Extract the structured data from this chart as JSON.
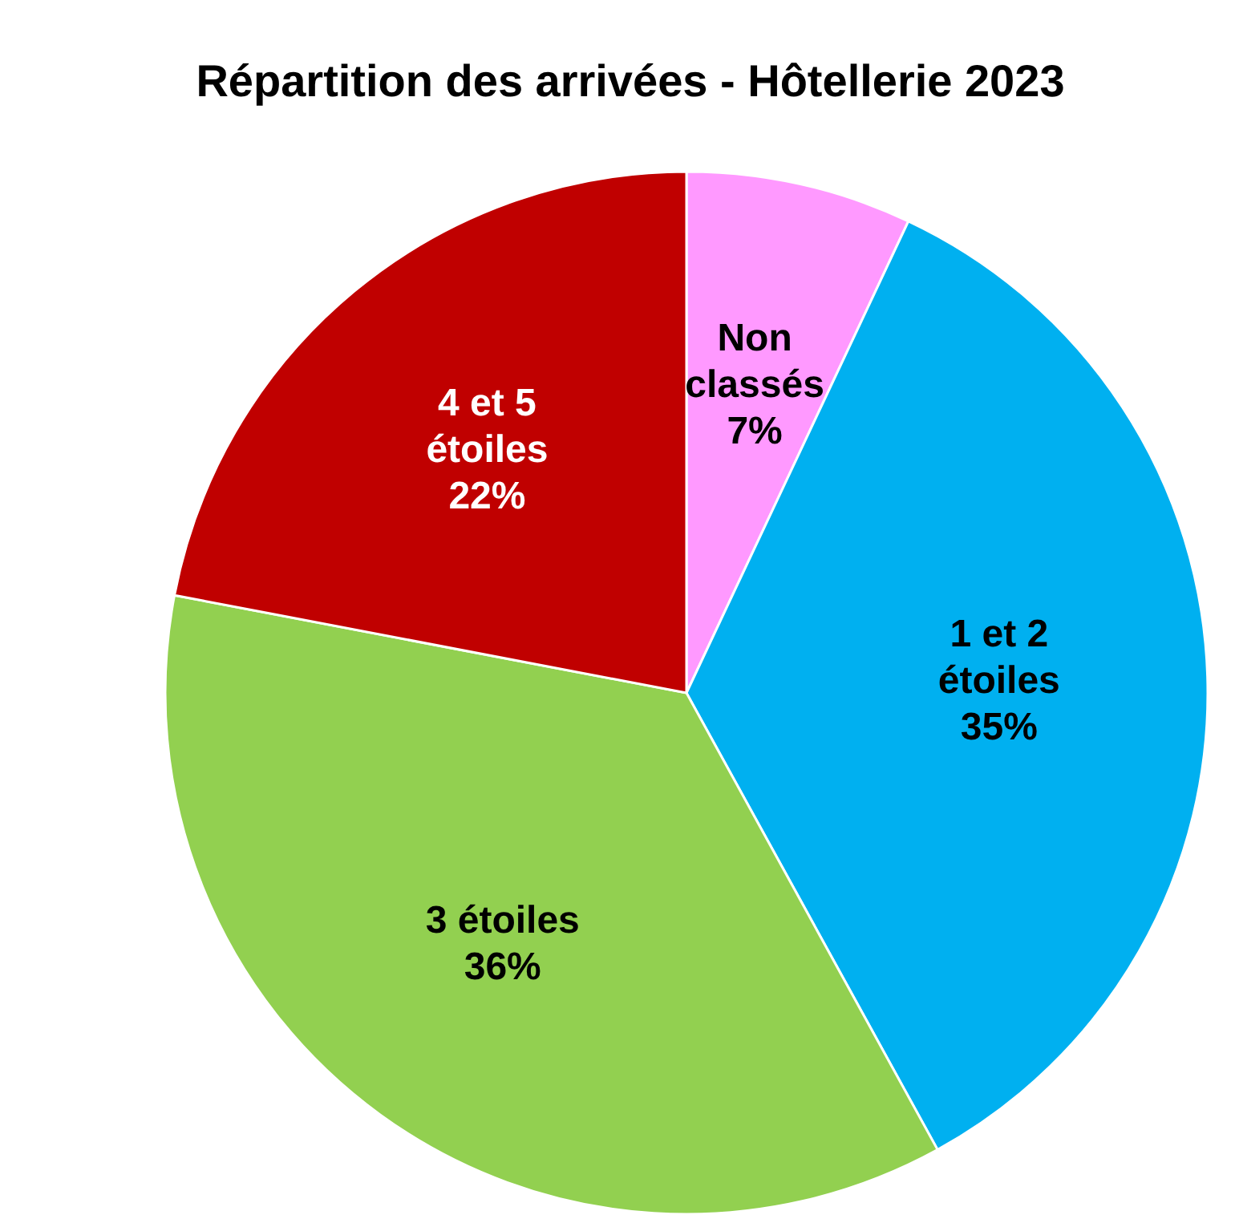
{
  "chart_data": {
    "type": "pie",
    "title": "Répartition des arrivées - Hôtellerie 2023",
    "categories": [
      "Non classés",
      "1 et 2 étoiles",
      "3 étoiles",
      "4 et 5 étoiles"
    ],
    "values": [
      7,
      35,
      36,
      22
    ],
    "colors": [
      "#ff99ff",
      "#00b0f0",
      "#92d050",
      "#c00000"
    ],
    "value_labels": [
      "7%",
      "35%",
      "36%",
      "22%"
    ]
  }
}
